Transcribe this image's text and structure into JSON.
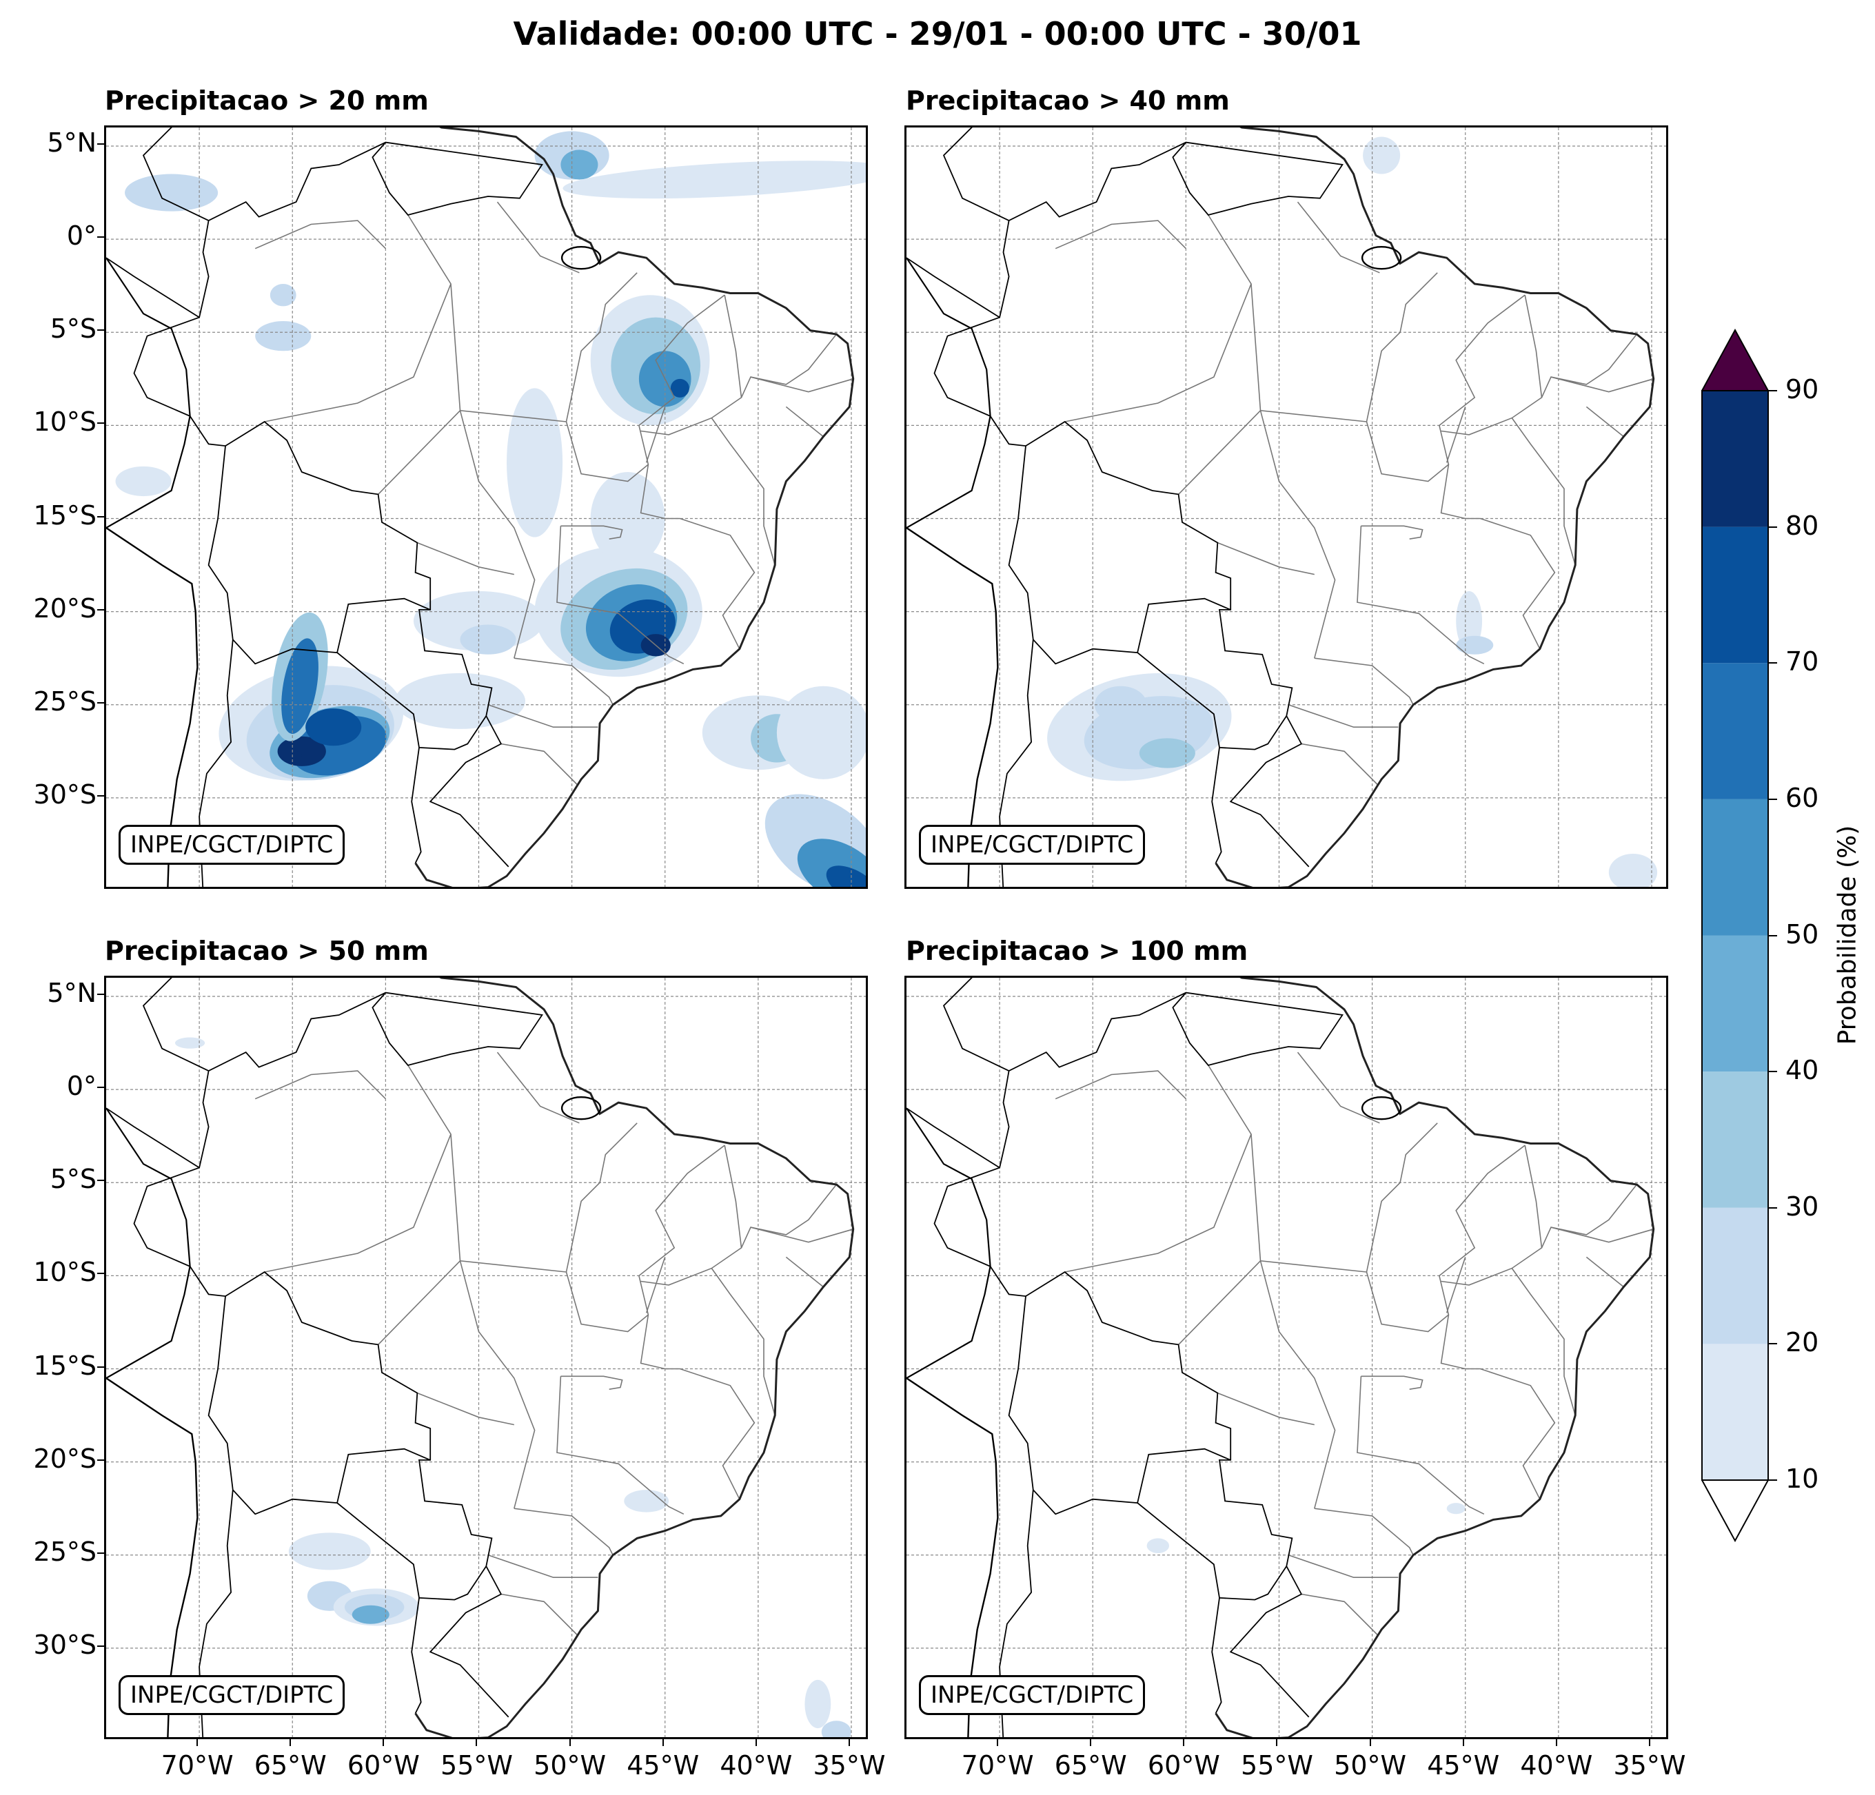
{
  "title": "Validade: 00:00 UTC - 29/01 - 00:00 UTC - 30/01",
  "panels": [
    {
      "title": "Precipitacao > 20 mm",
      "credit": "INPE/CGCT/DIPTC"
    },
    {
      "title": "Precipitacao > 40 mm",
      "credit": "INPE/CGCT/DIPTC"
    },
    {
      "title": "Precipitacao > 50 mm",
      "credit": "INPE/CGCT/DIPTC"
    },
    {
      "title": "Precipitacao > 100 mm",
      "credit": "INPE/CGCT/DIPTC"
    }
  ],
  "lat_ticks": [
    "5°N",
    "0°",
    "5°S",
    "10°S",
    "15°S",
    "20°S",
    "25°S",
    "30°S"
  ],
  "lon_ticks": [
    "70°W",
    "65°W",
    "60°W",
    "55°W",
    "50°W",
    "45°W",
    "40°W",
    "35°W"
  ],
  "colorbar": {
    "label": "Probabilidade (%)",
    "ticks": [
      "10",
      "20",
      "30",
      "40",
      "50",
      "60",
      "70",
      "80",
      "90"
    ],
    "colors": [
      "#dbe7f4",
      "#c5daef",
      "#9ecae1",
      "#6baed6",
      "#4292c6",
      "#2171b5",
      "#08519c",
      "#083070"
    ],
    "over_color": "#4a0040",
    "under_color": "#ffffff"
  },
  "map_extent": {
    "lon_min": -75,
    "lon_max": -34,
    "lat_min": -35,
    "lat_max": 6
  }
}
